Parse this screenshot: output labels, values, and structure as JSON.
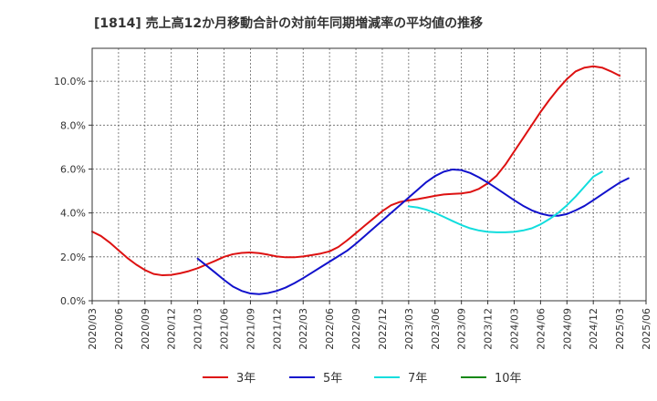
{
  "chart_data": {
    "type": "line",
    "title": "[1814]  売上高12か月移動合計の対前年同期増減率の平均値の推移",
    "xlabel": "",
    "ylabel": "",
    "ylim": [
      0,
      11.5
    ],
    "yticks": [
      0,
      2,
      4,
      6,
      8,
      10
    ],
    "ytick_labels": [
      "0.0%",
      "2.0%",
      "4.0%",
      "6.0%",
      "8.0%",
      "10.0%"
    ],
    "xtick_labels": [
      "2020/03",
      "2020/06",
      "2020/09",
      "2020/12",
      "2021/03",
      "2021/06",
      "2021/09",
      "2021/12",
      "2022/03",
      "2022/06",
      "2022/09",
      "2022/12",
      "2023/03",
      "2023/06",
      "2023/09",
      "2023/12",
      "2024/03",
      "2024/06",
      "2024/09",
      "2024/12",
      "2025/03",
      "2025/06"
    ],
    "grid": true,
    "legend_position": "bottom",
    "series": [
      {
        "name": "3年",
        "color": "#dd1111",
        "start_index": 0,
        "values": [
          3.15,
          2.95,
          2.65,
          2.3,
          1.95,
          1.65,
          1.4,
          1.22,
          1.16,
          1.18,
          1.25,
          1.35,
          1.48,
          1.65,
          1.82,
          2.0,
          2.12,
          2.18,
          2.2,
          2.17,
          2.1,
          2.02,
          1.98,
          1.98,
          2.02,
          2.08,
          2.15,
          2.25,
          2.45,
          2.75,
          3.08,
          3.42,
          3.75,
          4.08,
          4.35,
          4.5,
          4.57,
          4.63,
          4.7,
          4.78,
          4.84,
          4.87,
          4.89,
          4.95,
          5.1,
          5.35,
          5.7,
          6.2,
          6.8,
          7.4,
          8.0,
          8.6,
          9.15,
          9.65,
          10.1,
          10.45,
          10.62,
          10.68,
          10.62,
          10.45,
          10.25
        ]
      },
      {
        "name": "5年",
        "color": "#1111cc",
        "start_index": 12,
        "values": [
          1.92,
          1.6,
          1.28,
          0.95,
          0.65,
          0.45,
          0.33,
          0.3,
          0.35,
          0.45,
          0.6,
          0.8,
          1.03,
          1.28,
          1.53,
          1.78,
          2.03,
          2.28,
          2.6,
          2.95,
          3.3,
          3.65,
          4.0,
          4.35,
          4.7,
          5.05,
          5.4,
          5.68,
          5.88,
          5.98,
          5.95,
          5.82,
          5.62,
          5.38,
          5.12,
          4.85,
          4.58,
          4.33,
          4.12,
          3.97,
          3.88,
          3.87,
          3.95,
          4.12,
          4.32,
          4.58,
          4.85,
          5.12,
          5.38,
          5.58
        ]
      },
      {
        "name": "7年",
        "color": "#11dddd",
        "start_index": 36,
        "values": [
          4.3,
          4.25,
          4.15,
          4.0,
          3.82,
          3.63,
          3.45,
          3.3,
          3.2,
          3.14,
          3.12,
          3.12,
          3.14,
          3.2,
          3.3,
          3.48,
          3.72,
          4.0,
          4.35,
          4.75,
          5.2,
          5.65,
          5.88
        ]
      },
      {
        "name": "10年",
        "color": "#118811",
        "start_index": 0,
        "values": []
      }
    ]
  }
}
